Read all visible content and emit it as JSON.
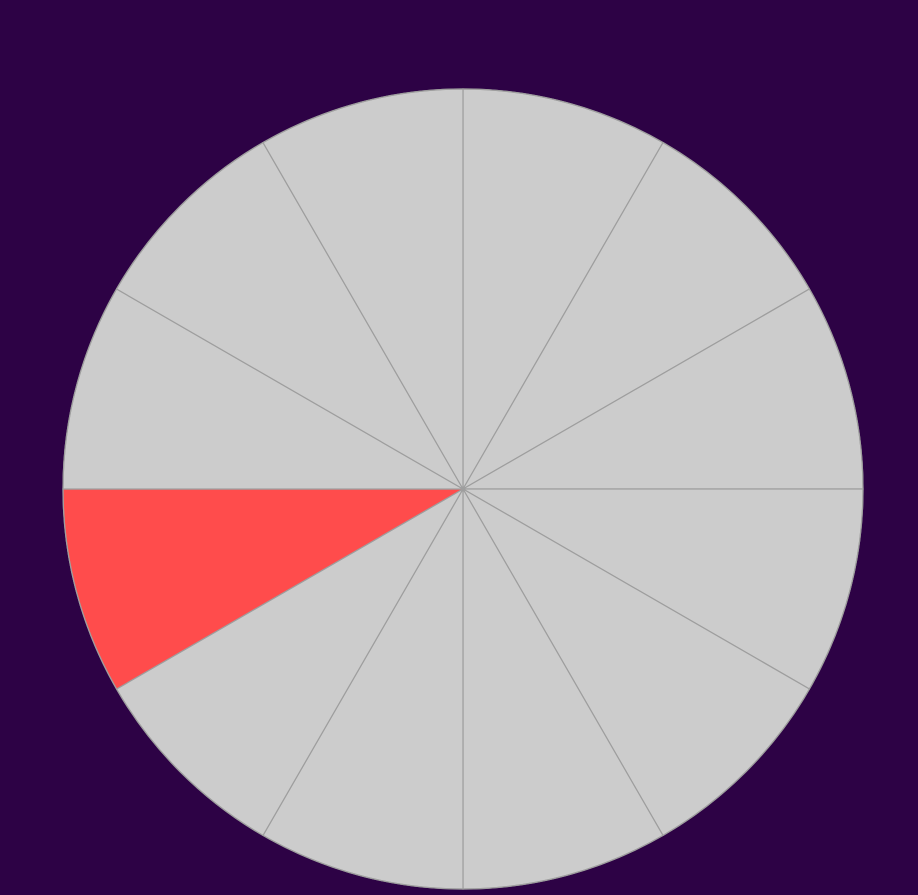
{
  "wheel": {
    "segment_count": 12,
    "selected_index": 8,
    "colors": {
      "background": "#2d0245",
      "segment_default": "#cccccc",
      "segment_selected": "#ff4c4c",
      "segment_stroke": "#9e9e9e"
    }
  }
}
